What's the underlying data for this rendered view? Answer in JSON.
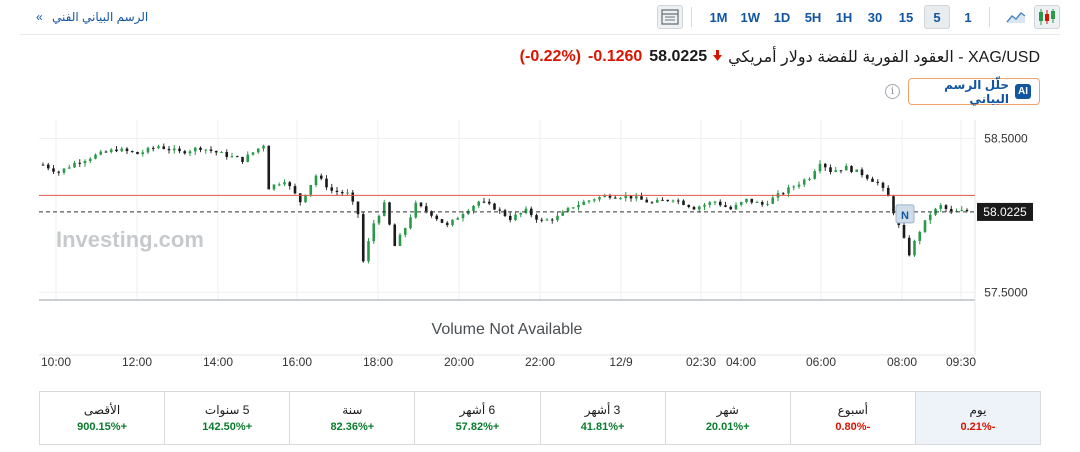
{
  "toolbar": {
    "technical_chart_link": "الرسم البياني الفني",
    "chevron": "»",
    "timeframes": [
      {
        "label": "1M",
        "active": false
      },
      {
        "label": "1W",
        "active": false
      },
      {
        "label": "1D",
        "active": false
      },
      {
        "label": "5H",
        "active": false
      },
      {
        "label": "1H",
        "active": false
      },
      {
        "label": "30",
        "active": false
      },
      {
        "label": "15",
        "active": false
      },
      {
        "label": "5",
        "active": true
      },
      {
        "label": "1",
        "active": false
      }
    ],
    "icons": [
      "table-layout-icon",
      "area-chart-icon",
      "candlestick-chart-icon"
    ]
  },
  "quote": {
    "name": "XAG/USD - العقود الفورية للفضة دولار أمريكي",
    "price": "58.0225",
    "change": "-0.1260",
    "change_pct": "(-0.22%)",
    "direction_icon": "down-arrow-icon"
  },
  "ai_button": {
    "badge": "AI",
    "label": "حلّل الرسم البياني"
  },
  "info_icon": "i",
  "chart_data": {
    "type": "candlestick",
    "interval": "5 minutes",
    "x_tick_labels": [
      "10:00",
      "12:00",
      "14:00",
      "16:00",
      "18:00",
      "20:00",
      "22:00",
      "12/9",
      "02:30",
      "04:00",
      "06:00",
      "08:00",
      "09:30"
    ],
    "y_tick_labels": [
      "58.5000",
      "57.5000"
    ],
    "ylim": [
      57.45,
      58.62
    ],
    "current_price_label": "58.0225",
    "current_price": 58.0225,
    "reference_line": 58.13,
    "marker_label": "N",
    "watermark": "Investing.com",
    "volume_text": "Volume Not Available",
    "close_path": [
      [
        0,
        58.33
      ],
      [
        3,
        58.28
      ],
      [
        6,
        58.34
      ],
      [
        10,
        58.39
      ],
      [
        14,
        58.43
      ],
      [
        18,
        58.4
      ],
      [
        22,
        58.45
      ],
      [
        26,
        58.41
      ],
      [
        30,
        58.44
      ],
      [
        34,
        58.4
      ],
      [
        38,
        58.36
      ],
      [
        42,
        58.46
      ],
      [
        43,
        58.18
      ],
      [
        46,
        58.23
      ],
      [
        49,
        58.09
      ],
      [
        52,
        58.26
      ],
      [
        55,
        58.16
      ],
      [
        58,
        58.14
      ],
      [
        60,
        58.01
      ],
      [
        61,
        57.7
      ],
      [
        63,
        57.95
      ],
      [
        65,
        58.07
      ],
      [
        67,
        57.8
      ],
      [
        69,
        57.92
      ],
      [
        71,
        58.07
      ],
      [
        74,
        58.01
      ],
      [
        77,
        57.93
      ],
      [
        80,
        58.02
      ],
      [
        83,
        58.09
      ],
      [
        86,
        58.05
      ],
      [
        89,
        57.98
      ],
      [
        92,
        58.03
      ],
      [
        95,
        57.96
      ],
      [
        98,
        57.99
      ],
      [
        101,
        58.06
      ],
      [
        105,
        58.11
      ],
      [
        108,
        58.13
      ],
      [
        112,
        58.12
      ],
      [
        116,
        58.08
      ],
      [
        120,
        58.11
      ],
      [
        124,
        58.05
      ],
      [
        128,
        58.09
      ],
      [
        131,
        58.04
      ],
      [
        134,
        58.1
      ],
      [
        137,
        58.07
      ],
      [
        140,
        58.13
      ],
      [
        143,
        58.19
      ],
      [
        146,
        58.25
      ],
      [
        148,
        58.35
      ],
      [
        150,
        58.29
      ],
      [
        153,
        58.31
      ],
      [
        156,
        58.27
      ],
      [
        159,
        58.21
      ],
      [
        161,
        58.12
      ],
      [
        163,
        57.93
      ],
      [
        165,
        57.75
      ],
      [
        167,
        57.9
      ],
      [
        169,
        58.01
      ],
      [
        171,
        58.06
      ],
      [
        173,
        58.02
      ],
      [
        176,
        58.03
      ]
    ]
  },
  "performance": [
    {
      "label": "يوم",
      "value": "-0.21%",
      "sign": "neg",
      "active": true
    },
    {
      "label": "أسبوع",
      "value": "-0.80%",
      "sign": "neg",
      "active": false
    },
    {
      "label": "شهر",
      "value": "+20.01%",
      "sign": "pos",
      "active": false
    },
    {
      "label": "3 أشهر",
      "value": "+41.81%",
      "sign": "pos",
      "active": false
    },
    {
      "label": "6 أشهر",
      "value": "+57.82%",
      "sign": "pos",
      "active": false
    },
    {
      "label": "سنة",
      "value": "+82.36%",
      "sign": "pos",
      "active": false
    },
    {
      "label": "5 سنوات",
      "value": "+142.50%",
      "sign": "pos",
      "active": false
    },
    {
      "label": "الأقصى",
      "value": "+900.15%",
      "sign": "pos",
      "active": false
    }
  ]
}
